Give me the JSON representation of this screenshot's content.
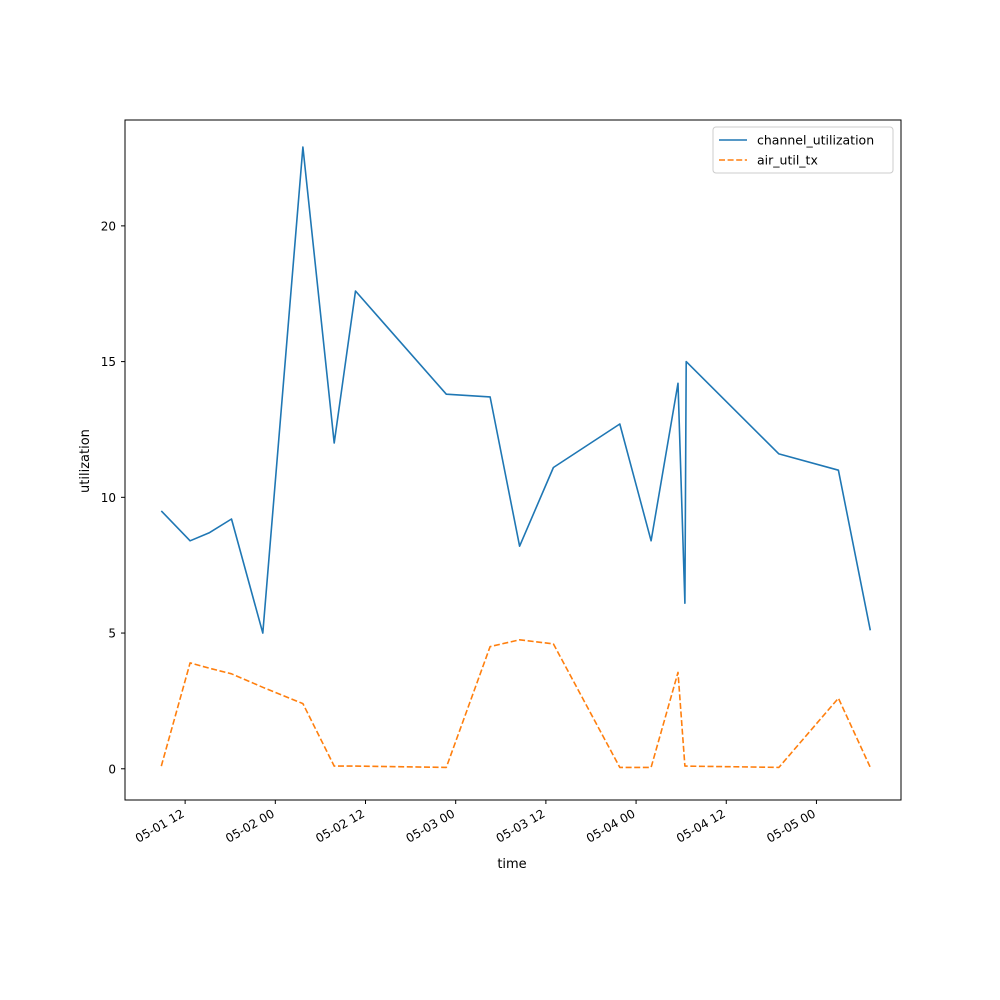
{
  "chart_data": {
    "type": "line",
    "xlabel": "time",
    "ylabel": "utilization",
    "x_ticks": [
      {
        "t": "2023-05-01T12:00",
        "label": "05-01 12"
      },
      {
        "t": "2023-05-02T00:00",
        "label": "05-02 00"
      },
      {
        "t": "2023-05-02T12:00",
        "label": "05-02 12"
      },
      {
        "t": "2023-05-03T00:00",
        "label": "05-03 00"
      },
      {
        "t": "2023-05-03T12:00",
        "label": "05-03 12"
      },
      {
        "t": "2023-05-04T00:00",
        "label": "05-04 00"
      },
      {
        "t": "2023-05-04T12:00",
        "label": "05-04 12"
      },
      {
        "t": "2023-05-05T00:00",
        "label": "05-05 00"
      }
    ],
    "y_ticks": [
      0,
      5,
      10,
      15,
      20
    ],
    "xlim": [
      "2023-05-01T04:00",
      "2023-05-05T11:15"
    ],
    "ylim": [
      -1.15,
      23.9
    ],
    "legend_position": "top-right",
    "series": [
      {
        "name": "channel_utilization",
        "color": "#1f77b4",
        "dash": "solid",
        "x": [
          "2023-05-01T08:50",
          "2023-05-01T12:40",
          "2023-05-01T15:15",
          "2023-05-01T18:10",
          "2023-05-01T22:20",
          "2023-05-02T03:40",
          "2023-05-02T07:50",
          "2023-05-02T10:40",
          "2023-05-02T22:45",
          "2023-05-03T04:35",
          "2023-05-03T08:30",
          "2023-05-03T13:00",
          "2023-05-03T21:50",
          "2023-05-04T02:00",
          "2023-05-04T05:35",
          "2023-05-04T06:30",
          "2023-05-04T06:40",
          "2023-05-04T19:00",
          "2023-05-05T02:55",
          "2023-05-05T07:10"
        ],
        "y": [
          9.5,
          8.4,
          8.7,
          9.2,
          5.0,
          22.9,
          12.0,
          17.6,
          13.8,
          13.7,
          8.2,
          11.1,
          12.7,
          8.4,
          14.2,
          6.1,
          15.0,
          11.6,
          11.0,
          5.1
        ]
      },
      {
        "name": "air_util_tx",
        "color": "#ff7f0e",
        "dash": "dashed",
        "x": [
          "2023-05-01T08:50",
          "2023-05-01T12:40",
          "2023-05-01T15:15",
          "2023-05-01T18:10",
          "2023-05-01T22:20",
          "2023-05-02T03:40",
          "2023-05-02T07:50",
          "2023-05-02T10:40",
          "2023-05-02T22:45",
          "2023-05-03T04:35",
          "2023-05-03T08:30",
          "2023-05-03T13:00",
          "2023-05-03T21:50",
          "2023-05-04T02:00",
          "2023-05-04T05:35",
          "2023-05-04T06:30",
          "2023-05-04T06:40",
          "2023-05-04T19:00",
          "2023-05-05T02:55",
          "2023-05-05T07:10"
        ],
        "y": [
          0.1,
          3.9,
          3.7,
          3.5,
          3.0,
          2.4,
          0.1,
          0.1,
          0.05,
          4.5,
          4.75,
          4.6,
          0.05,
          0.05,
          3.55,
          0.1,
          0.1,
          0.05,
          2.6,
          0.05
        ]
      }
    ]
  }
}
